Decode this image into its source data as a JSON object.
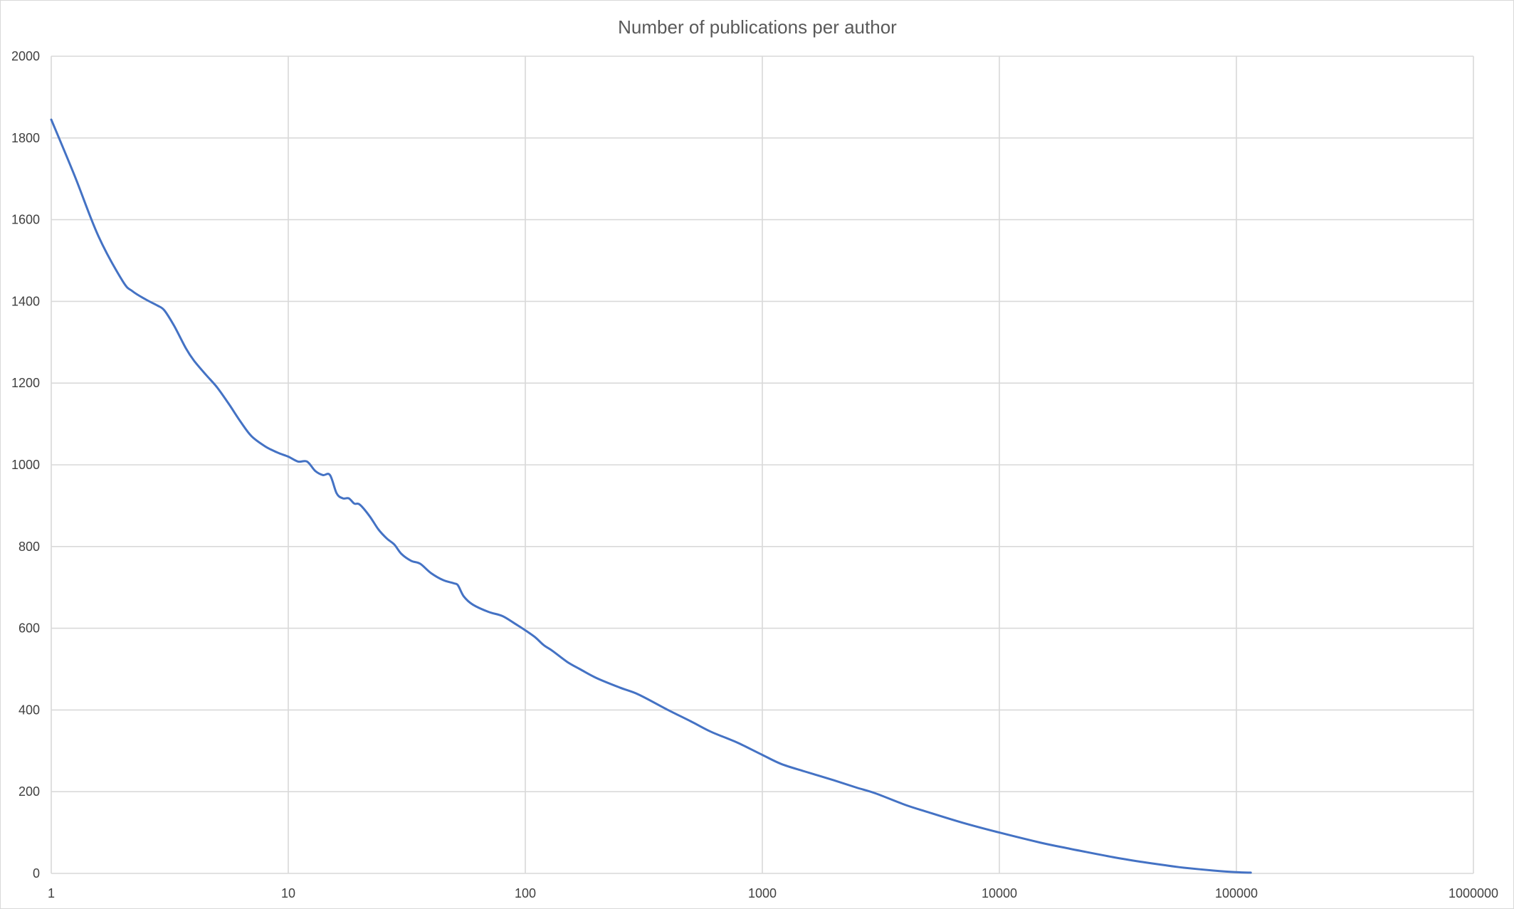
{
  "chart_data": {
    "type": "line",
    "title": "Number of publications per author",
    "xlabel": "",
    "ylabel": "",
    "x_scale": "log",
    "xlim": [
      1,
      1000000
    ],
    "ylim": [
      0,
      2000
    ],
    "x_ticks": [
      1,
      10,
      100,
      1000,
      10000,
      100000,
      1000000
    ],
    "x_tick_labels": [
      "1",
      "10",
      "100",
      "1000",
      "10000",
      "100000",
      "1000000"
    ],
    "y_ticks": [
      0,
      200,
      400,
      600,
      800,
      1000,
      1200,
      1400,
      1600,
      1800,
      2000
    ],
    "y_tick_labels": [
      "0",
      "200",
      "400",
      "600",
      "800",
      "1000",
      "1200",
      "1400",
      "1600",
      "1800",
      "2000"
    ],
    "grid": true,
    "legend": "none",
    "colors": {
      "series": "#4472c4",
      "grid": "#d9d9d9",
      "text": "#595959"
    },
    "series": [
      {
        "x": [
          1,
          1.26,
          1.58,
          2,
          2.2,
          2.5,
          2.8,
          3,
          3.3,
          3.7,
          4,
          4.5,
          5,
          5.6,
          6.3,
          7,
          8,
          9,
          10,
          11,
          12,
          13,
          14,
          15,
          16,
          17,
          18,
          19,
          20,
          22,
          24,
          26,
          28,
          30,
          33,
          36,
          40,
          45,
          50,
          52,
          55,
          60,
          70,
          80,
          90,
          100,
          110,
          120,
          130,
          150,
          170,
          200,
          250,
          300,
          400,
          500,
          600,
          700,
          800,
          1000,
          1200,
          1500,
          2000,
          2500,
          3000,
          4000,
          5000,
          7000,
          10000,
          15000,
          20000,
          30000,
          40000,
          50000,
          60000,
          80000,
          100000,
          115000
        ],
        "y": [
          1845,
          1705,
          1560,
          1450,
          1425,
          1405,
          1390,
          1378,
          1340,
          1285,
          1255,
          1220,
          1190,
          1150,
          1105,
          1070,
          1045,
          1030,
          1020,
          1008,
          1008,
          985,
          975,
          975,
          930,
          918,
          918,
          905,
          903,
          875,
          842,
          820,
          805,
          782,
          765,
          758,
          735,
          718,
          710,
          705,
          678,
          658,
          640,
          630,
          612,
          595,
          578,
          558,
          545,
          518,
          500,
          478,
          455,
          438,
          400,
          372,
          348,
          332,
          318,
          290,
          268,
          250,
          228,
          210,
          196,
          168,
          150,
          124,
          100,
          75,
          60,
          40,
          28,
          20,
          14,
          7,
          3,
          2
        ]
      }
    ]
  }
}
